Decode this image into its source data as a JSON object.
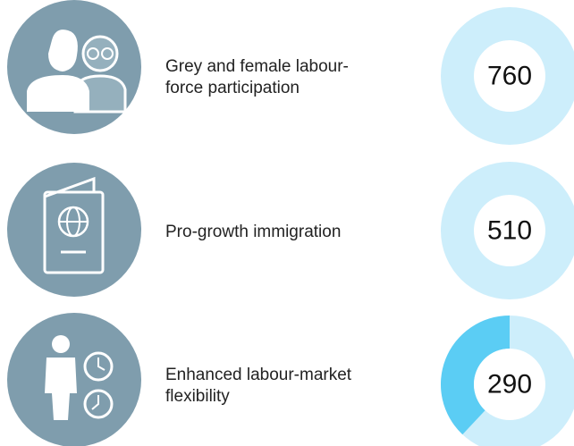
{
  "rows": [
    {
      "label": [
        "Grey and female labour-",
        "force participation"
      ],
      "value": 760
    },
    {
      "label": [
        "Pro-growth immigration"
      ],
      "value": 510
    },
    {
      "label": [
        "Enhanced labour-market",
        "flexibility"
      ],
      "value": 290,
      "segment": 38
    }
  ]
}
